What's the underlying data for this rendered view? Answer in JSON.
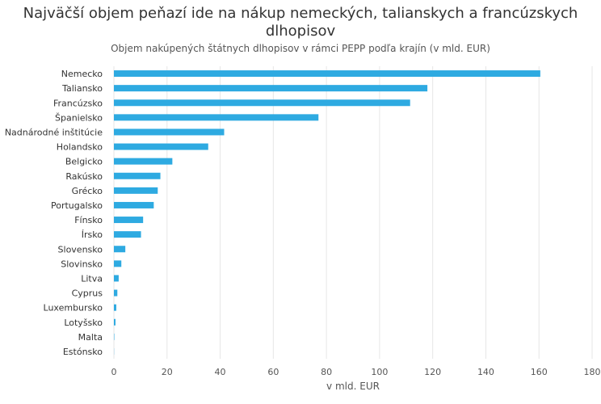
{
  "chart_data": {
    "type": "bar",
    "orientation": "horizontal",
    "title": "Najväčší objem peňazí ide na nákup nemeckých, talianskych a francúzskych dlhopisov",
    "subtitle": "Objem nakúpených štátnych dlhopisov v rámci PEPP podľa krajín (v mld. EUR)",
    "xlabel": "v mld. EUR",
    "ylabel": "",
    "xlim": [
      0,
      180
    ],
    "xticks": [
      0,
      20,
      40,
      60,
      80,
      100,
      120,
      140,
      160,
      180
    ],
    "grid": true,
    "bar_color": "#2eaae1",
    "categories": [
      "Nemecko",
      "Taliansko",
      "Francúzsko",
      "Španielsko",
      "Nadnárodné inštitúcie",
      "Holandsko",
      "Belgicko",
      "Rakúsko",
      "Grécko",
      "Portugalsko",
      "Fínsko",
      "Írsko",
      "Slovensko",
      "Slovinsko",
      "Litva",
      "Cyprus",
      "Luxembursko",
      "Lotyšsko",
      "Malta",
      "Estónsko"
    ],
    "values": [
      160.5,
      118,
      111.5,
      77,
      41.5,
      35.5,
      22,
      17.5,
      16.5,
      15,
      11,
      10.2,
      4.3,
      2.8,
      1.8,
      1.3,
      0.9,
      0.6,
      0.15,
      0.05
    ]
  }
}
